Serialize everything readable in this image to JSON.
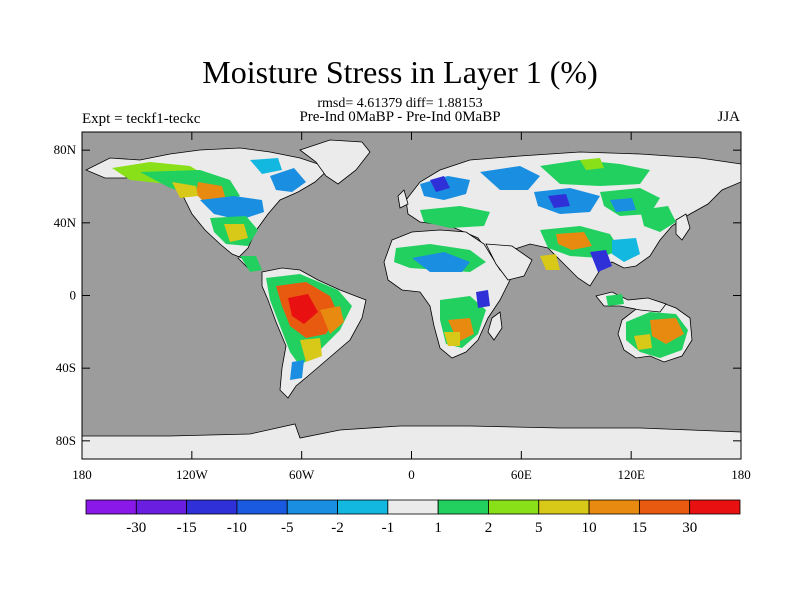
{
  "title": "Moisture Stress in Layer 1 (%)",
  "stats": "rmsd= 4.61379 diff= 1.88153",
  "subtitle": "Pre-Ind 0MaBP - Pre-Ind 0MaBP",
  "experiment": "Expt = teckf1-teckc",
  "season": "JJA",
  "map": {
    "lat_ticks": [
      {
        "value": 80,
        "label": "80N"
      },
      {
        "value": 40,
        "label": "40N"
      },
      {
        "value": 0,
        "label": "0"
      },
      {
        "value": -40,
        "label": "40S"
      },
      {
        "value": -80,
        "label": "80S"
      }
    ],
    "lon_ticks": [
      {
        "value": -180,
        "label": "180"
      },
      {
        "value": -120,
        "label": "120W"
      },
      {
        "value": -60,
        "label": "60W"
      },
      {
        "value": 0,
        "label": "0"
      },
      {
        "value": 60,
        "label": "60E"
      },
      {
        "value": 120,
        "label": "120E"
      },
      {
        "value": 180,
        "label": "180"
      }
    ],
    "lat_range": [
      -90,
      90
    ],
    "lon_range": [
      -180,
      180
    ],
    "ocean_color": "#9c9c9c",
    "neutral_color": "#ebebeb"
  },
  "colorbar": {
    "colors": [
      "#8a18e8",
      "#6a1ee0",
      "#3030d8",
      "#1a5ae0",
      "#1a8ee0",
      "#12b8e0",
      "#ebebeb",
      "#22d060",
      "#8ae018",
      "#d8c818",
      "#e88a10",
      "#e85a10",
      "#e81010"
    ],
    "labels": [
      "-30",
      "-15",
      "-10",
      "-5",
      "-2",
      "-1",
      "1",
      "2",
      "5",
      "10",
      "15",
      "30"
    ]
  }
}
